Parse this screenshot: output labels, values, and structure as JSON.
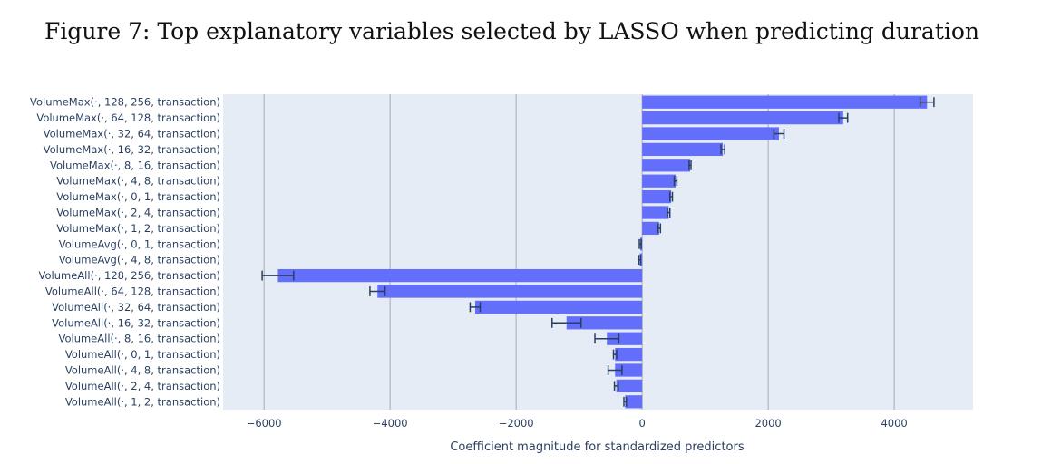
{
  "figure_title": "Figure 7: Top explanatory variables selected by LASSO when predicting duration",
  "chart_data": {
    "type": "bar",
    "orientation": "horizontal",
    "title": "",
    "xlabel": "Coefficient magnitude for standardized predictors",
    "ylabel": "",
    "xlim": [
      -6650,
      5250
    ],
    "x_ticks": [
      -6000,
      -4000,
      -2000,
      0,
      2000,
      4000
    ],
    "x_tick_labels": [
      "−6000",
      "−4000",
      "−2000",
      "0",
      "2000",
      "4000"
    ],
    "grid": "vertical",
    "colors": {
      "bar": "#636efa",
      "plot_bg": "#e5ecf6",
      "grid": "#b0b6bd",
      "errorbar": "#2a3f5f"
    },
    "categories": [
      "VolumeMax(·, 128, 256, transaction)",
      "VolumeMax(·, 64, 128, transaction)",
      "VolumeMax(·, 32, 64, transaction)",
      "VolumeMax(·, 16, 32, transaction)",
      "VolumeMax(·, 8, 16, transaction)",
      "VolumeMax(·, 4, 8, transaction)",
      "VolumeMax(·, 0, 1, transaction)",
      "VolumeMax(·, 2, 4, transaction)",
      "VolumeMax(·, 1, 2, transaction)",
      "VolumeAvg(·, 0, 1, transaction)",
      "VolumeAvg(·, 4, 8, transaction)",
      "VolumeAll(·, 128, 256, transaction)",
      "VolumeAll(·, 64, 128, transaction)",
      "VolumeAll(·, 32, 64, transaction)",
      "VolumeAll(·, 16, 32, transaction)",
      "VolumeAll(·, 8, 16, transaction)",
      "VolumeAll(·, 0, 1, transaction)",
      "VolumeAll(·, 4, 8, transaction)",
      "VolumeAll(·, 2, 4, transaction)",
      "VolumeAll(·, 1, 2, transaction)"
    ],
    "values": [
      4520,
      3190,
      2170,
      1280,
      760,
      530,
      460,
      420,
      270,
      -30,
      -40,
      -5780,
      -4200,
      -2650,
      -1200,
      -560,
      -430,
      -430,
      -410,
      -270
    ],
    "errors": [
      110,
      70,
      80,
      30,
      15,
      20,
      20,
      20,
      20,
      15,
      15,
      250,
      120,
      80,
      230,
      190,
      25,
      110,
      30,
      20
    ]
  }
}
